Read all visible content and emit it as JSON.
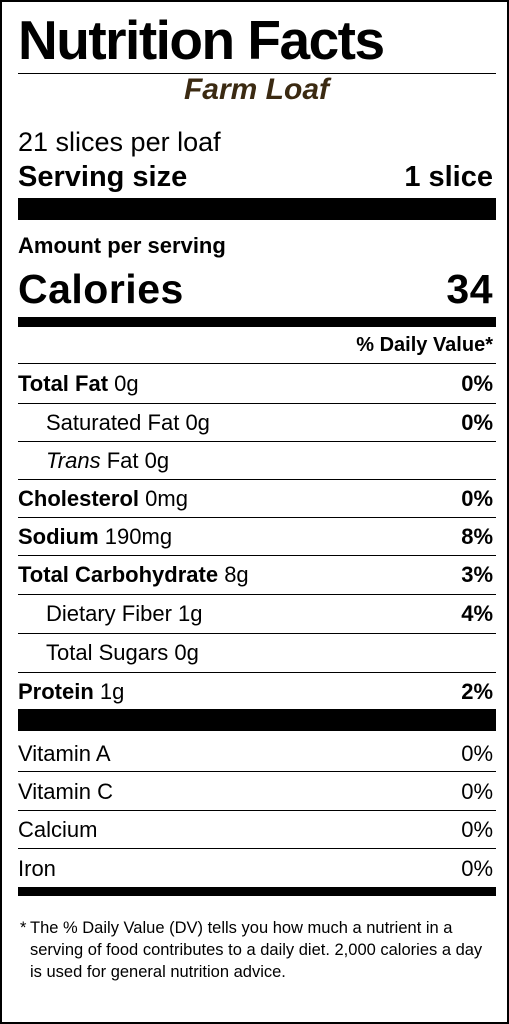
{
  "title": "Nutrition Facts",
  "product_name": "Farm Loaf",
  "servings_per_container": "21 slices per loaf",
  "serving_size": {
    "label": "Serving size",
    "value": "1 slice"
  },
  "amount_per_serving": "Amount per serving",
  "calories": {
    "label": "Calories",
    "value": "34"
  },
  "daily_value_header": "% Daily Value*",
  "nutrients": [
    {
      "name": "Total Fat",
      "amount": "0g",
      "dv": "0%"
    },
    {
      "name": "Saturated Fat",
      "amount": "0g",
      "dv": "0%"
    },
    {
      "name": "Trans",
      "name_suffix": "Fat",
      "amount": "0g",
      "dv": ""
    },
    {
      "name": "Cholesterol",
      "amount": "0mg",
      "dv": "0%"
    },
    {
      "name": "Sodium",
      "amount": "190mg",
      "dv": "8%"
    },
    {
      "name": "Total Carbohydrate",
      "amount": "8g",
      "dv": "3%"
    },
    {
      "name": "Dietary Fiber",
      "amount": "1g",
      "dv": "4%"
    },
    {
      "name": "Total Sugars",
      "amount": "0g",
      "dv": ""
    },
    {
      "name": "Protein",
      "amount": "1g",
      "dv": "2%"
    }
  ],
  "vitamins": [
    {
      "name": "Vitamin A",
      "dv": "0%"
    },
    {
      "name": "Vitamin C",
      "dv": "0%"
    },
    {
      "name": "Calcium",
      "dv": "0%"
    },
    {
      "name": "Iron",
      "dv": "0%"
    }
  ],
  "footnote": {
    "marker": "*",
    "text": "The % Daily Value (DV) tells you how much a nutrient in a serving of food contributes to a daily diet. 2,000 calories a day is used for general nutrition advice."
  }
}
